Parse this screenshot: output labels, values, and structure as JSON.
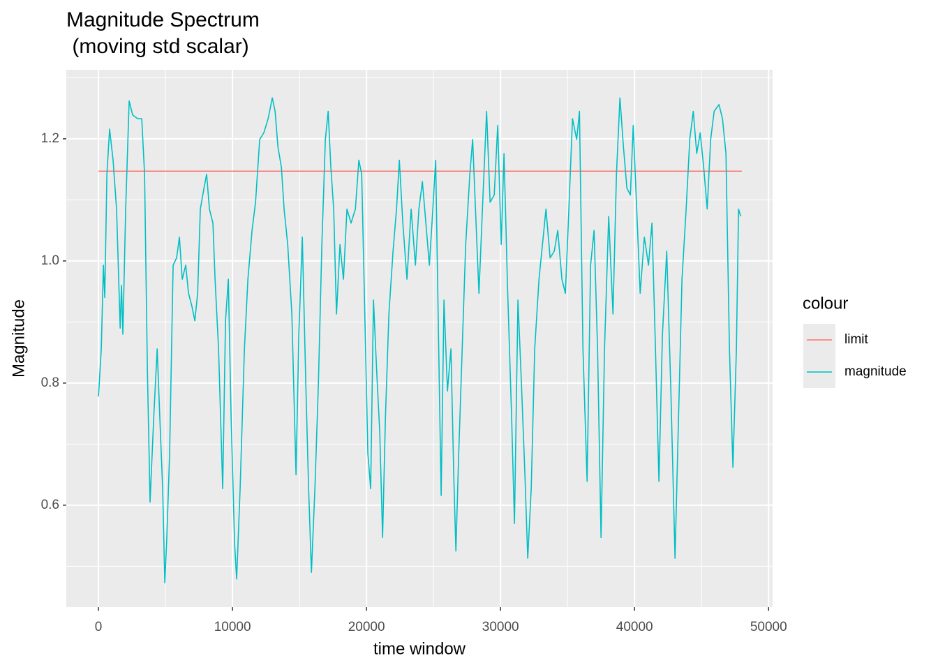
{
  "chart_data": {
    "type": "line",
    "title": "Magnitude Spectrum\n (moving std scalar)",
    "x_label": "time window",
    "y_label": "Magnitude",
    "legend_title": "colour",
    "legend": "right",
    "grid": true,
    "minor_grid": true,
    "xlim": [
      -2400,
      50300
    ],
    "ylim": [
      0.433,
      1.313
    ],
    "xticks": [
      0,
      10000,
      20000,
      30000,
      40000,
      50000
    ],
    "yticks": [
      0.6,
      0.8,
      {
        "value": 1,
        "label": "1.0"
      },
      1.2
    ],
    "series": [
      {
        "name": "limit",
        "color": "#F8766D",
        "x": [
          0,
          48000
        ],
        "values": [
          1.147,
          1.147
        ]
      },
      {
        "name": "magnitude",
        "color": "#00BFC4",
        "x": [
          0,
          210,
          370,
          470,
          630,
          830,
          1090,
          1350,
          1620,
          1720,
          1820,
          2030,
          2290,
          2550,
          2920,
          3230,
          3440,
          3650,
          3850,
          4120,
          4380,
          4580,
          4790,
          4950,
          5100,
          5310,
          5570,
          5830,
          6040,
          6250,
          6510,
          6720,
          6980,
          7190,
          7400,
          7600,
          7870,
          8070,
          8280,
          8540,
          8700,
          8960,
          9270,
          9480,
          9690,
          9900,
          10160,
          10310,
          10570,
          10890,
          11150,
          11460,
          11720,
          12030,
          12340,
          12660,
          12970,
          13180,
          13390,
          13650,
          13850,
          14120,
          14430,
          14740,
          14950,
          15210,
          15470,
          15680,
          15890,
          16150,
          16410,
          16670,
          16930,
          17140,
          17340,
          17550,
          17760,
          18020,
          18280,
          18540,
          18850,
          19170,
          19430,
          19640,
          19840,
          20100,
          20310,
          20520,
          20780,
          20990,
          21200,
          21410,
          21670,
          21980,
          22240,
          22450,
          22710,
          23020,
          23330,
          23650,
          23910,
          24170,
          24430,
          24690,
          24950,
          25160,
          25370,
          25570,
          25780,
          26040,
          26300,
          26510,
          26670,
          26880,
          27140,
          27400,
          27710,
          27920,
          28130,
          28390,
          28650,
          28960,
          29220,
          29530,
          29790,
          30050,
          30260,
          30520,
          30830,
          31040,
          31300,
          31560,
          31820,
          32030,
          32290,
          32550,
          32870,
          33130,
          33390,
          33700,
          34010,
          34270,
          34580,
          34840,
          35100,
          35370,
          35680,
          35890,
          36150,
          36460,
          36720,
          36980,
          37240,
          37500,
          37760,
          38070,
          38390,
          38650,
          38910,
          39170,
          39430,
          39690,
          39900,
          40160,
          40420,
          40730,
          41040,
          41300,
          41560,
          41820,
          42080,
          42400,
          42710,
          43020,
          43280,
          43540,
          43850,
          44120,
          44380,
          44640,
          44900,
          45160,
          45420,
          45680,
          45940,
          46300,
          46560,
          46820,
          47080,
          47340,
          47600,
          47760,
          47920
        ],
        "values": [
          0.778,
          0.856,
          0.993,
          0.94,
          1.142,
          1.216,
          1.165,
          1.085,
          0.89,
          0.96,
          0.88,
          1.085,
          1.262,
          1.239,
          1.233,
          1.233,
          1.142,
          0.822,
          0.605,
          0.742,
          0.856,
          0.742,
          0.627,
          0.473,
          0.547,
          0.685,
          0.993,
          1.005,
          1.039,
          0.97,
          0.993,
          0.947,
          0.925,
          0.902,
          0.947,
          1.085,
          1.119,
          1.142,
          1.085,
          1.062,
          0.97,
          0.856,
          0.627,
          0.902,
          0.97,
          0.742,
          0.536,
          0.479,
          0.627,
          0.856,
          0.97,
          1.05,
          1.096,
          1.199,
          1.21,
          1.233,
          1.267,
          1.245,
          1.187,
          1.153,
          1.085,
          1.027,
          0.913,
          0.65,
          0.879,
          1.039,
          0.799,
          0.627,
          0.49,
          0.627,
          0.799,
          1.027,
          1.199,
          1.245,
          1.153,
          1.085,
          0.913,
          1.027,
          0.97,
          1.085,
          1.062,
          1.085,
          1.165,
          1.142,
          0.947,
          0.685,
          0.627,
          0.936,
          0.81,
          0.719,
          0.547,
          0.742,
          0.913,
          1.016,
          1.085,
          1.165,
          1.062,
          0.97,
          1.085,
          0.993,
          1.085,
          1.13,
          1.062,
          0.993,
          1.085,
          1.165,
          0.879,
          0.616,
          0.936,
          0.787,
          0.856,
          0.65,
          0.525,
          0.685,
          0.856,
          1.027,
          1.142,
          1.199,
          1.085,
          0.947,
          1.085,
          1.245,
          1.096,
          1.108,
          1.222,
          1.027,
          1.176,
          0.959,
          0.742,
          0.57,
          0.936,
          0.799,
          0.65,
          0.513,
          0.627,
          0.856,
          0.97,
          1.027,
          1.085,
          1.005,
          1.016,
          1.05,
          0.97,
          0.947,
          1.085,
          1.233,
          1.199,
          1.245,
          0.856,
          0.639,
          0.993,
          1.05,
          0.856,
          0.547,
          0.856,
          1.073,
          0.913,
          1.142,
          1.267,
          1.187,
          1.119,
          1.108,
          1.222,
          1.085,
          0.947,
          1.039,
          0.993,
          1.062,
          0.856,
          0.639,
          0.879,
          1.016,
          0.787,
          0.513,
          0.742,
          0.97,
          1.085,
          1.199,
          1.245,
          1.176,
          1.21,
          1.153,
          1.085,
          1.199,
          1.245,
          1.256,
          1.233,
          1.176,
          0.856,
          0.662,
          0.856,
          1.085,
          1.073
        ]
      }
    ]
  }
}
